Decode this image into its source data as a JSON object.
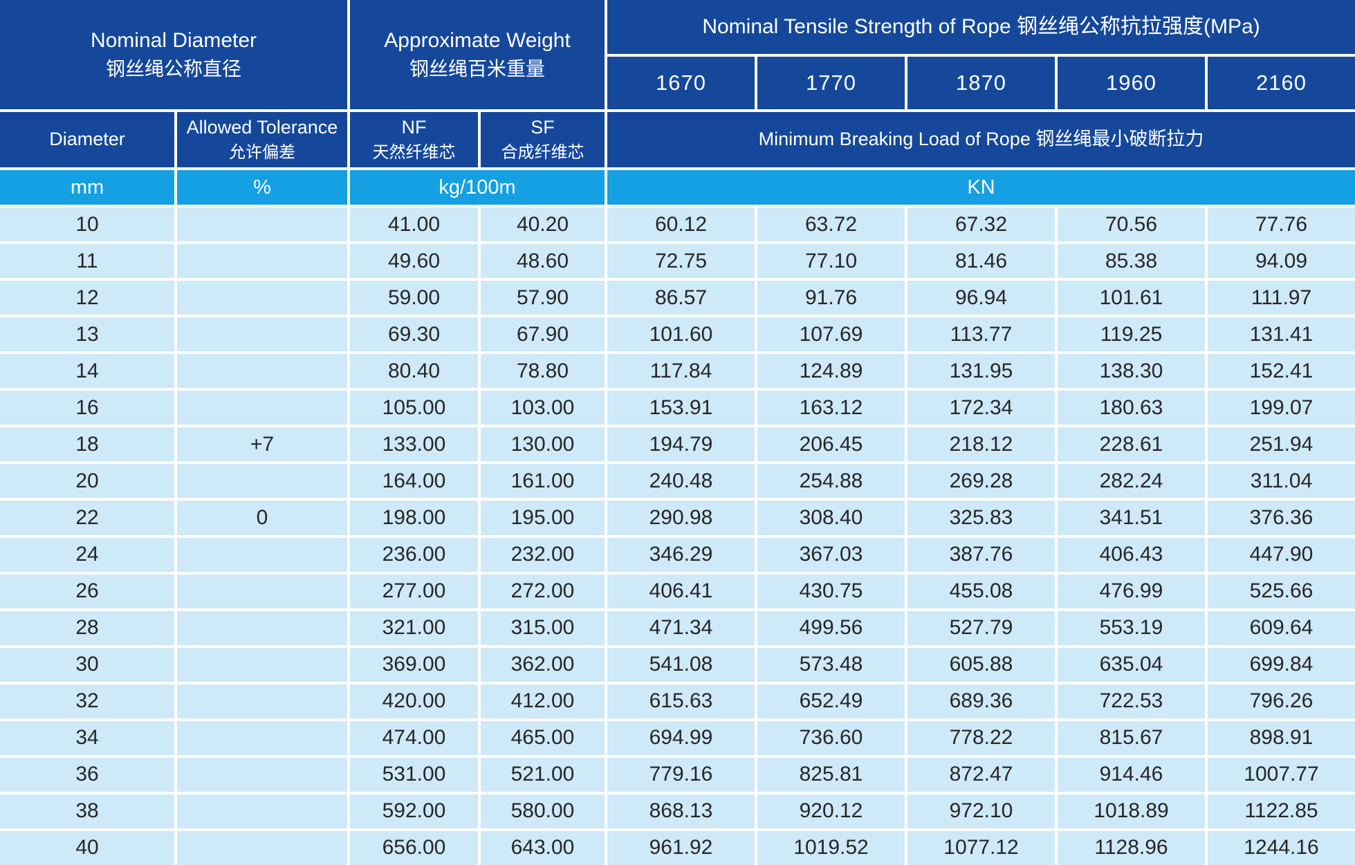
{
  "colors": {
    "header_bg": "#15489B",
    "units_bg": "#14A0E2",
    "row_bg": "#CEE9F8",
    "separator": "#FFFFFF",
    "header_text": "#FFFFFF",
    "data_text": "#262626"
  },
  "header": {
    "nominal_diameter_en": "Nominal Diameter",
    "nominal_diameter_zh": "钢丝绳公称直径",
    "approximate_weight_en": "Approximate Weight",
    "approximate_weight_zh": "钢丝绳百米重量",
    "tensile_strength_title": "Nominal Tensile Strength of Rope 钢丝绳公称抗拉强度(MPa)",
    "strength_grades": [
      "1670",
      "1770",
      "1870",
      "1960",
      "2160"
    ],
    "diameter_label": "Diameter",
    "allowed_tolerance_en": "Allowed Tolerance",
    "allowed_tolerance_zh": "允许偏差",
    "nf_en": "NF",
    "nf_zh": "天然纤维芯",
    "sf_en": "SF",
    "sf_zh": "合成纤维芯",
    "breaking_load_title": "Minimum Breaking Load of Rope 钢丝绳最小破断拉力"
  },
  "units": {
    "diameter": "mm",
    "tolerance": "%",
    "weight": "kg/100m",
    "load": "KN"
  },
  "table": {
    "columns": [
      "diameter",
      "tolerance",
      "nf",
      "sf",
      "load-1670",
      "load-1770",
      "load-1870",
      "load-1960",
      "load-2160"
    ],
    "rows": [
      {
        "diameter": "10",
        "tolerance": "",
        "nf": "41.00",
        "sf": "40.20",
        "loads": [
          "60.12",
          "63.72",
          "67.32",
          "70.56",
          "77.76"
        ]
      },
      {
        "diameter": "11",
        "tolerance": "",
        "nf": "49.60",
        "sf": "48.60",
        "loads": [
          "72.75",
          "77.10",
          "81.46",
          "85.38",
          "94.09"
        ]
      },
      {
        "diameter": "12",
        "tolerance": "",
        "nf": "59.00",
        "sf": "57.90",
        "loads": [
          "86.57",
          "91.76",
          "96.94",
          "101.61",
          "111.97"
        ]
      },
      {
        "diameter": "13",
        "tolerance": "",
        "nf": "69.30",
        "sf": "67.90",
        "loads": [
          "101.60",
          "107.69",
          "113.77",
          "119.25",
          "131.41"
        ]
      },
      {
        "diameter": "14",
        "tolerance": "",
        "nf": "80.40",
        "sf": "78.80",
        "loads": [
          "117.84",
          "124.89",
          "131.95",
          "138.30",
          "152.41"
        ]
      },
      {
        "diameter": "16",
        "tolerance": "",
        "nf": "105.00",
        "sf": "103.00",
        "loads": [
          "153.91",
          "163.12",
          "172.34",
          "180.63",
          "199.07"
        ]
      },
      {
        "diameter": "18",
        "tolerance": "+7",
        "nf": "133.00",
        "sf": "130.00",
        "loads": [
          "194.79",
          "206.45",
          "218.12",
          "228.61",
          "251.94"
        ]
      },
      {
        "diameter": "20",
        "tolerance": "",
        "nf": "164.00",
        "sf": "161.00",
        "loads": [
          "240.48",
          "254.88",
          "269.28",
          "282.24",
          "311.04"
        ]
      },
      {
        "diameter": "22",
        "tolerance": "0",
        "nf": "198.00",
        "sf": "195.00",
        "loads": [
          "290.98",
          "308.40",
          "325.83",
          "341.51",
          "376.36"
        ]
      },
      {
        "diameter": "24",
        "tolerance": "",
        "nf": "236.00",
        "sf": "232.00",
        "loads": [
          "346.29",
          "367.03",
          "387.76",
          "406.43",
          "447.90"
        ]
      },
      {
        "diameter": "26",
        "tolerance": "",
        "nf": "277.00",
        "sf": "272.00",
        "loads": [
          "406.41",
          "430.75",
          "455.08",
          "476.99",
          "525.66"
        ]
      },
      {
        "diameter": "28",
        "tolerance": "",
        "nf": "321.00",
        "sf": "315.00",
        "loads": [
          "471.34",
          "499.56",
          "527.79",
          "553.19",
          "609.64"
        ]
      },
      {
        "diameter": "30",
        "tolerance": "",
        "nf": "369.00",
        "sf": "362.00",
        "loads": [
          "541.08",
          "573.48",
          "605.88",
          "635.04",
          "699.84"
        ]
      },
      {
        "diameter": "32",
        "tolerance": "",
        "nf": "420.00",
        "sf": "412.00",
        "loads": [
          "615.63",
          "652.49",
          "689.36",
          "722.53",
          "796.26"
        ]
      },
      {
        "diameter": "34",
        "tolerance": "",
        "nf": "474.00",
        "sf": "465.00",
        "loads": [
          "694.99",
          "736.60",
          "778.22",
          "815.67",
          "898.91"
        ]
      },
      {
        "diameter": "36",
        "tolerance": "",
        "nf": "531.00",
        "sf": "521.00",
        "loads": [
          "779.16",
          "825.81",
          "872.47",
          "914.46",
          "1007.77"
        ]
      },
      {
        "diameter": "38",
        "tolerance": "",
        "nf": "592.00",
        "sf": "580.00",
        "loads": [
          "868.13",
          "920.12",
          "972.10",
          "1018.89",
          "1122.85"
        ]
      },
      {
        "diameter": "40",
        "tolerance": "",
        "nf": "656.00",
        "sf": "643.00",
        "loads": [
          "961.92",
          "1019.52",
          "1077.12",
          "1128.96",
          "1244.16"
        ]
      }
    ]
  }
}
